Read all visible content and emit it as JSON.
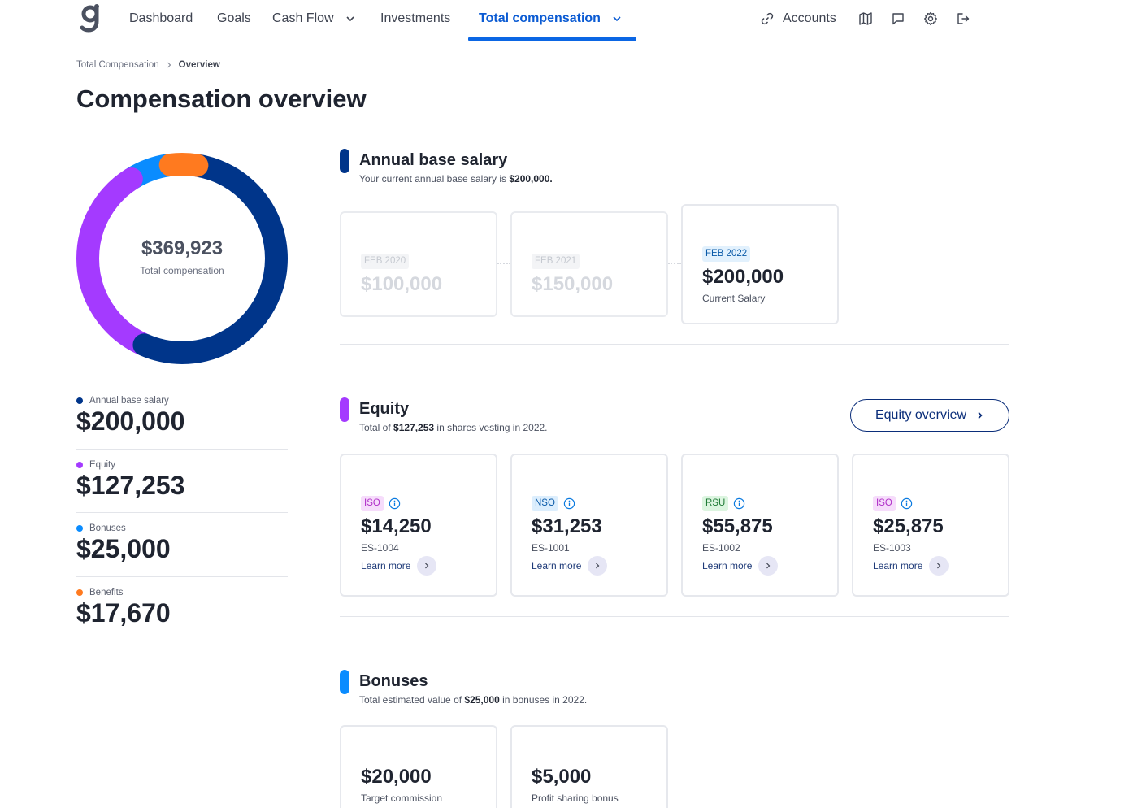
{
  "nav": {
    "items": [
      {
        "label": "Dashboard"
      },
      {
        "label": "Goals"
      },
      {
        "label": "Cash Flow"
      },
      {
        "label": "Investments"
      },
      {
        "label": "Total compensation"
      }
    ],
    "accounts_label": "Accounts",
    "icons": [
      "link-icon",
      "map-icon",
      "chat-icon",
      "gear-icon",
      "logout-icon"
    ],
    "active_color": "#0b66e4"
  },
  "breadcrumb": {
    "parent": "Total Compensation",
    "current": "Overview"
  },
  "page_title": "Compensation overview",
  "donut": {
    "total": "$369,923",
    "label": "Total compensation",
    "segments": [
      {
        "name": "Annual base salary",
        "value": 200000,
        "color": "#00358a"
      },
      {
        "name": "Equity",
        "value": 127253,
        "color": "#a43aff"
      },
      {
        "name": "Bonuses",
        "value": 25000,
        "color": "#0a8cff"
      },
      {
        "name": "Benefits",
        "value": 17670,
        "color": "#ff7a1f"
      }
    ]
  },
  "legend": [
    {
      "label": "Annual base salary",
      "value": "$200,000",
      "color": "#00358a"
    },
    {
      "label": "Equity",
      "value": "$127,253",
      "color": "#a43aff"
    },
    {
      "label": "Bonuses",
      "value": "$25,000",
      "color": "#0a8cff"
    },
    {
      "label": "Benefits",
      "value": "$17,670",
      "color": "#ff7a1f"
    }
  ],
  "salary": {
    "title": "Annual base salary",
    "desc_prefix": "Your current annual base salary is ",
    "desc_value": "$200,000.",
    "bar_color": "#00358a",
    "history": [
      {
        "date": "FEB 2020",
        "amount": "$100,000"
      },
      {
        "date": "FEB 2021",
        "amount": "$150,000"
      },
      {
        "date": "FEB 2022",
        "amount": "$200,000",
        "sub": "Current Salary"
      }
    ]
  },
  "equity": {
    "title": "Equity",
    "desc_prefix": "Total of ",
    "desc_value": "$127,253",
    "desc_suffix": " in shares vesting in 2022.",
    "bar_color": "#a43aff",
    "overview_button": "Equity overview",
    "learn_more": "Learn more",
    "grants": [
      {
        "type": "ISO",
        "amount": "$14,250",
        "id": "ES-1004"
      },
      {
        "type": "NSO",
        "amount": "$31,253",
        "id": "ES-1001"
      },
      {
        "type": "RSU",
        "amount": "$55,875",
        "id": "ES-1002"
      },
      {
        "type": "ISO",
        "amount": "$25,875",
        "id": "ES-1003"
      }
    ]
  },
  "bonuses": {
    "title": "Bonuses",
    "desc_prefix": "Total estimated value of ",
    "desc_value": "$25,000",
    "desc_suffix": " in bonuses in 2022.",
    "bar_color": "#0a8cff",
    "items": [
      {
        "amount": "$20,000",
        "label": "Target commission"
      },
      {
        "amount": "$5,000",
        "label": "Profit sharing bonus"
      }
    ]
  }
}
